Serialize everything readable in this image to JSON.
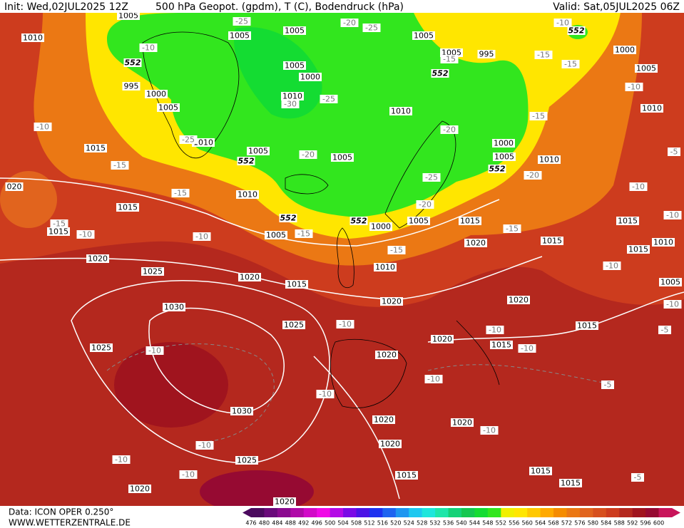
{
  "header": {
    "init": "Init: Wed,02JUL2025 12Z",
    "title": "500 hPa Geopot. (gpdm), T (C), Bodendruck (hPa)",
    "valid": "Valid: Sat,05JUL2025 06Z"
  },
  "footer": {
    "data": "Data: ICON OPER 0.250°",
    "site": "WWW.WETTERZENTRALE.DE"
  },
  "colorbar": {
    "ticks": [
      476,
      480,
      484,
      488,
      492,
      496,
      500,
      504,
      508,
      512,
      516,
      520,
      524,
      528,
      532,
      536,
      540,
      544,
      548,
      552,
      556,
      560,
      564,
      568,
      572,
      576,
      580,
      584,
      588,
      592,
      596,
      600
    ],
    "colors": [
      "#4b0a5e",
      "#6a0a7a",
      "#8b0a8f",
      "#b00aa8",
      "#d20ac8",
      "#f00ae6",
      "#b40ae6",
      "#7a0ae6",
      "#4b14e6",
      "#1e32f0",
      "#1e64f0",
      "#1e96f0",
      "#1ec8f0",
      "#1ee6dc",
      "#1ee6aa",
      "#14d278",
      "#14c850",
      "#14dc32",
      "#32e61e",
      "#f0f000",
      "#ffe600",
      "#ffc800",
      "#ffaa00",
      "#f58c00",
      "#eb7814",
      "#e1641e",
      "#d7501e",
      "#cd3c1e",
      "#b4281e",
      "#a0141e",
      "#960a32",
      "#c8145a"
    ]
  },
  "isobar_labels": [
    "1005",
    "1005",
    "1005",
    "1005",
    "1005",
    "995",
    "1000",
    "1005",
    "1010",
    "995",
    "1000",
    "1005",
    "1005",
    "1000",
    "1010",
    "1010",
    "1010",
    "1015",
    "1010",
    "1005",
    "1005",
    "1000",
    "1005",
    "1010",
    "020",
    "1010",
    "1015",
    "1015",
    "1005",
    "1000",
    "1005",
    "1015",
    "1015",
    "1020",
    "1015",
    "1015",
    "1010",
    "1020",
    "1025",
    "1020",
    "1015",
    "1010",
    "1005",
    "1020",
    "1020",
    "1030",
    "1025",
    "1015",
    "1020",
    "1015",
    "1025",
    "1020",
    "1030",
    "1020",
    "1020",
    "1020",
    "1025",
    "1015",
    "1015",
    "1015",
    "1020",
    "1020"
  ],
  "temperature_labels": [
    "-25",
    "-20",
    "-25",
    "-10",
    "-10",
    "-15",
    "-15",
    "-15",
    "-30",
    "-25",
    "-10",
    "-10",
    "-15",
    "-20",
    "-25",
    "-20",
    "-15",
    "-25",
    "-20",
    "-5",
    "-15",
    "-10",
    "-20",
    "-15",
    "-10",
    "-10",
    "-15",
    "-15",
    "-10",
    "-15",
    "-10",
    "-10",
    "-10",
    "-10",
    "-5",
    "-10",
    "-10",
    "-10",
    "-5",
    "-10",
    "-10",
    "-10",
    "-10",
    "-10",
    "-5"
  ],
  "height_labels": [
    "552",
    "552",
    "552",
    "552",
    "552",
    "552",
    "552"
  ]
}
